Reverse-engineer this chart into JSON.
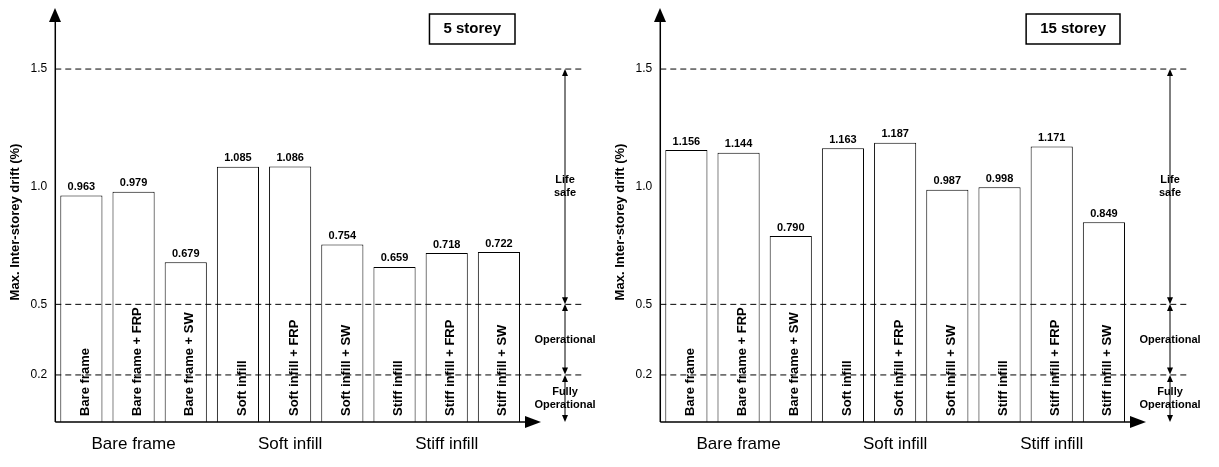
{
  "chart_data": [
    {
      "type": "bar",
      "title": "5 storey",
      "ylabel": "Max. Inter-storey drift (%)",
      "categories": [
        "Bare frame",
        "Bare frame + FRP",
        "Bare frame + SW",
        "Soft infill",
        "Soft infill + FRP",
        "Soft infill + SW",
        "Stiff infill",
        "Stiff infill + FRP",
        "Stiff infill + SW"
      ],
      "values": [
        0.963,
        0.979,
        0.679,
        1.085,
        1.086,
        0.754,
        0.659,
        0.718,
        0.722
      ],
      "color": "#ffffff",
      "data_labels": true,
      "ylim": [
        0,
        1.7
      ],
      "yticks": [
        0.2,
        0.5,
        {
          "value": 1,
          "label": "1.0"
        },
        1.5
      ],
      "grid": false,
      "legend": false,
      "ref_lines": [
        {
          "axis": "y",
          "value": 0.2,
          "line_style": "dashed"
        },
        {
          "axis": "y",
          "value": 0.5,
          "line_style": "dashed"
        },
        {
          "axis": "y",
          "value": 1.5,
          "line_style": "dashed"
        }
      ],
      "annotations": [
        "Bare frame",
        "Soft infill",
        "Stiff infill",
        "Fully Operational",
        "Operational",
        "Life safe"
      ]
    },
    {
      "type": "bar",
      "title": "15 storey",
      "ylabel": "Max. Inter-storey drift (%)",
      "categories": [
        "Bare frame",
        "Bare frame + FRP",
        "Bare frame + SW",
        "Soft infill",
        "Soft infill + FRP",
        "Soft infill + SW",
        "Stiff infill",
        "Stiff infill + FRP",
        "Stiff infill + SW"
      ],
      "values": [
        1.156,
        1.144,
        0.79,
        1.163,
        1.187,
        0.987,
        0.998,
        1.171,
        0.849
      ],
      "value_labels": [
        "1.156",
        "1.144",
        "0.790",
        "1.163",
        "1.187",
        "0.987",
        "0.998",
        "1.171",
        "0.849"
      ],
      "color": "#ffffff",
      "ylim": [
        0,
        1.7
      ],
      "yticks": [
        0.2,
        0.5,
        {
          "value": 1,
          "label": "1.0"
        },
        1.5
      ],
      "grid": false,
      "legend": false,
      "ref_lines": [
        {
          "axis": "y",
          "value": 0.2,
          "line_style": "dashed"
        },
        {
          "axis": "y",
          "value": 0.5,
          "line_style": "dashed"
        },
        {
          "axis": "y",
          "value": 1.5,
          "line_style": "dashed"
        }
      ],
      "annotations": [
        "Bare frame",
        "Soft infill",
        "Stiff infill",
        "Fully Operational",
        "Operational",
        "Life safe"
      ]
    }
  ]
}
